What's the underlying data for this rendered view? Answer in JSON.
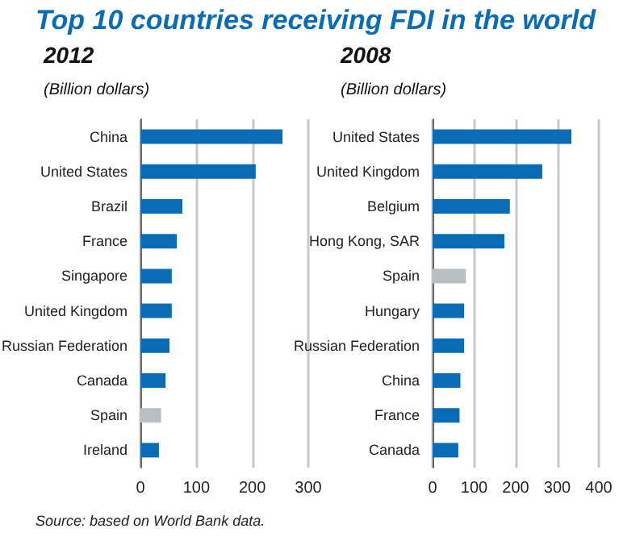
{
  "chart_data": [
    {
      "type": "bar",
      "orientation": "horizontal",
      "title": "2012",
      "subtitle": "(Billion dollars)",
      "annotations": [
        "Top 10 countries receiving FDI in the world"
      ],
      "categories": [
        "China",
        "United States",
        "Brazil",
        "France",
        "Singapore",
        "United Kingdom",
        "Russian Federation",
        "Canada",
        "Spain",
        "Ireland"
      ],
      "values": [
        254,
        206,
        75,
        65,
        56,
        56,
        52,
        45,
        37,
        33
      ],
      "colors": [
        "#0a6cb5",
        "#0a6cb5",
        "#0a6cb5",
        "#0a6cb5",
        "#0a6cb5",
        "#0a6cb5",
        "#0a6cb5",
        "#0a6cb5",
        "#b8bec2",
        "#0a6cb5"
      ],
      "xlim": [
        0,
        300
      ],
      "xticks": [
        0,
        100,
        200,
        300
      ],
      "grid": "x"
    },
    {
      "type": "bar",
      "orientation": "horizontal",
      "title": "2008",
      "subtitle": "(Billion dollars)",
      "annotations": [
        "Source: based on World Bank data."
      ],
      "categories": [
        "United States",
        "United Kingdom",
        "Belgium",
        "Hong Kong, SAR",
        "Spain",
        "Hungary",
        "Russian Federation",
        "China",
        "France",
        "Canada"
      ],
      "values": [
        334,
        264,
        186,
        173,
        80,
        76,
        76,
        67,
        65,
        62
      ],
      "colors": [
        "#0a6cb5",
        "#0a6cb5",
        "#0a6cb5",
        "#0a6cb5",
        "#b8bec2",
        "#0a6cb5",
        "#0a6cb5",
        "#0a6cb5",
        "#0a6cb5",
        "#0a6cb5"
      ],
      "xlim": [
        0,
        400
      ],
      "xticks": [
        0,
        100,
        200,
        300,
        400
      ],
      "grid": "x"
    }
  ]
}
